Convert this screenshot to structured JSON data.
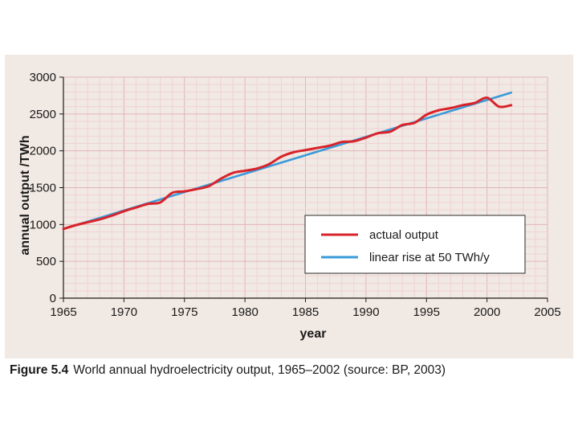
{
  "chart_data": {
    "type": "line",
    "title": "",
    "xlabel": "year",
    "ylabel": "annual output /TWh",
    "xlim": [
      1965,
      2005
    ],
    "ylim": [
      0,
      3000
    ],
    "x_ticks": [
      1965,
      1970,
      1975,
      1980,
      1985,
      1990,
      1995,
      2000,
      2005
    ],
    "y_ticks": [
      0,
      500,
      1000,
      1500,
      2000,
      2500,
      3000
    ],
    "x_tick_labels": [
      "1965",
      "1970",
      "1975",
      "1980",
      "1985",
      "1990",
      "1995",
      "2000",
      "2005"
    ],
    "y_tick_labels": [
      "0",
      "500",
      "1000",
      "1500",
      "2000",
      "2500",
      "3000"
    ],
    "grid": true,
    "legend_position": "lower-right",
    "series": [
      {
        "name": "actual output",
        "color": "#d8232a",
        "x": [
          1965,
          1966,
          1967,
          1968,
          1969,
          1970,
          1971,
          1972,
          1973,
          1974,
          1975,
          1976,
          1977,
          1978,
          1979,
          1980,
          1981,
          1982,
          1983,
          1984,
          1985,
          1986,
          1987,
          1988,
          1989,
          1990,
          1991,
          1992,
          1993,
          1994,
          1995,
          1996,
          1997,
          1998,
          1999,
          2000,
          2001,
          2002
        ],
        "values": [
          940,
          990,
          1030,
          1070,
          1120,
          1180,
          1230,
          1280,
          1300,
          1430,
          1450,
          1480,
          1520,
          1620,
          1700,
          1730,
          1760,
          1820,
          1920,
          1980,
          2010,
          2040,
          2070,
          2120,
          2130,
          2180,
          2240,
          2260,
          2350,
          2380,
          2490,
          2550,
          2580,
          2620,
          2650,
          2720,
          2600,
          2620
        ]
      },
      {
        "name": "linear rise at 50 TWh/y",
        "color": "#3a9bd9",
        "x": [
          1965,
          2002
        ],
        "values": [
          940,
          2790
        ]
      }
    ]
  },
  "caption": {
    "figure_label": "Figure 5.4",
    "text": "World annual hydroelectricity output, 1965–2002 (source: BP, 2003)"
  }
}
